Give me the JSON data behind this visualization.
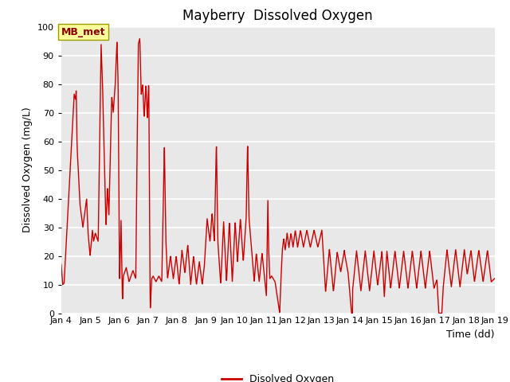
{
  "title": "Mayberry  Dissolved Oxygen",
  "xlabel": "Time (dd)",
  "ylabel": "Dissolved Oxygen (mg/L)",
  "legend_label": "Disolved Oxygen",
  "legend_label2": "MB_met",
  "line_color": "#cc0000",
  "fig_facecolor": "#ffffff",
  "plot_bg_color": "#e8e8e8",
  "ylim": [
    0,
    100
  ],
  "xlim_start": 4.0,
  "xlim_end": 19.0,
  "xticks": [
    4,
    5,
    6,
    7,
    8,
    9,
    10,
    11,
    12,
    13,
    14,
    15,
    16,
    17,
    18,
    19
  ],
  "xtick_labels": [
    "Jan 4",
    "Jan 5",
    "Jan 6",
    "Jan 7",
    "Jan 8",
    "Jan 9",
    "Jan 10",
    "Jan 11",
    "Jan 12",
    "Jan 13",
    "Jan 14",
    "Jan 15",
    "Jan 16",
    "Jan 17",
    "Jan 18",
    "Jan 19"
  ],
  "yticks": [
    0,
    10,
    20,
    30,
    40,
    50,
    60,
    70,
    80,
    90,
    100
  ],
  "annotation_text": "MB_met",
  "title_fontsize": 12,
  "axis_label_fontsize": 9,
  "tick_fontsize": 8
}
